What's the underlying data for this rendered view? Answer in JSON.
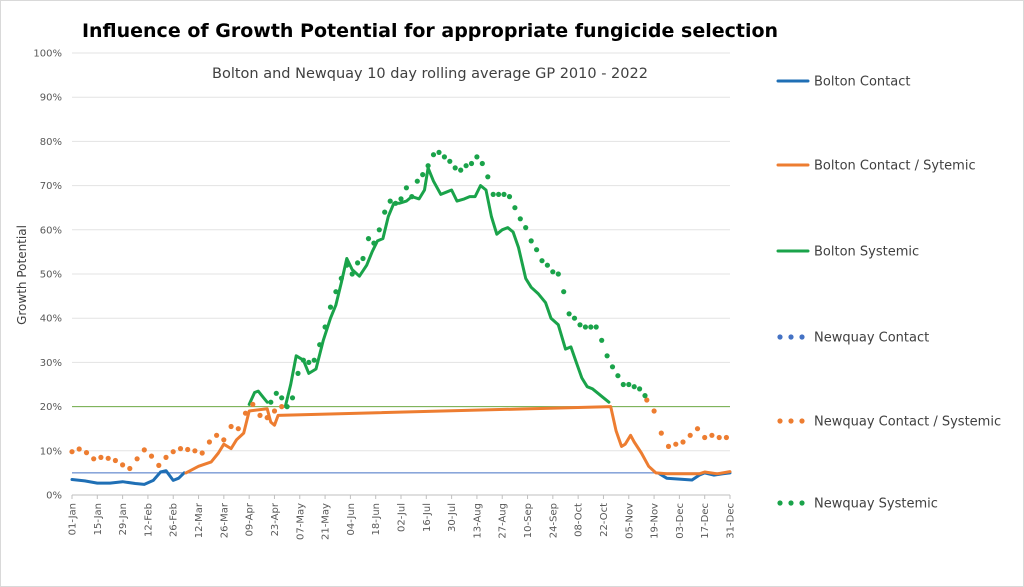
{
  "chart_data": {
    "type": "line",
    "title": "Influence of Growth Potential for appropriate fungicide selection",
    "subtitle": "Bolton and Newquay 10 day rolling average GP 2010 - 2022",
    "ylabel": "Growth Potential",
    "xlabel": "",
    "ylim": [
      0,
      100
    ],
    "y_ticks": [
      "0%",
      "10%",
      "20%",
      "30%",
      "40%",
      "50%",
      "60%",
      "70%",
      "80%",
      "90%",
      "100%"
    ],
    "x_ticks": [
      "01-Jan",
      "15-Jan",
      "29-Jan",
      "12-Feb",
      "26-Feb",
      "12-Mar",
      "26-Mar",
      "09-Apr",
      "23-Apr",
      "07-May",
      "21-May",
      "04-Jun",
      "18-Jun",
      "02-Jul",
      "16-Jul",
      "30-Jul",
      "13-Aug",
      "27-Aug",
      "10-Sep",
      "24-Sep",
      "08-Oct",
      "22-Oct",
      "05-Nov",
      "19-Nov",
      "03-Dec",
      "17-Dec",
      "31-Dec"
    ],
    "thresholds": [
      {
        "value": 5,
        "color": "#4472c4"
      },
      {
        "value": 20,
        "color": "#70ad47"
      }
    ],
    "grid": true,
    "legend_position": "right",
    "colors": {
      "contact": "#1f6fb5",
      "contact_systemic": "#ed7d31",
      "systemic": "#1aa34a"
    },
    "series": [
      {
        "name": "Bolton Contact",
        "style": "solid",
        "color": "#1f6fb5",
        "x": [
          "01-Jan",
          "08-Jan",
          "15-Jan",
          "22-Jan",
          "29-Jan",
          "05-Feb",
          "10-Feb",
          "15-Feb",
          "19-Feb",
          "22-Feb",
          "26-Feb",
          "01-Mar",
          "04-Mar",
          "06-Nov",
          "08-Nov",
          "15-Nov",
          "22-Nov",
          "26-Nov",
          "03-Dec",
          "10-Dec",
          "14-Dec",
          "17-Dec",
          "22-Dec",
          "27-Dec",
          "31-Dec"
        ],
        "y": [
          3.5,
          3.2,
          2.7,
          2.7,
          3.0,
          2.6,
          2.4,
          3.3,
          5.2,
          5.5,
          3.3,
          3.8,
          5.0,
          null,
          null,
          null,
          4.8,
          3.8,
          3.6,
          3.4,
          4.5,
          5.0,
          4.5,
          4.8,
          5.0
        ]
      },
      {
        "name": "Bolton Contact / Sytemic",
        "style": "solid",
        "color": "#ed7d31",
        "x": [
          "05-Mar",
          "12-Mar",
          "19-Mar",
          "23-Mar",
          "26-Mar",
          "30-Mar",
          "02-Apr",
          "06-Apr",
          "09-Apr",
          "19-Apr",
          "21-Apr",
          "23-Apr",
          "25-Apr",
          "26-Oct",
          "29-Oct",
          "01-Nov",
          "03-Nov",
          "06-Nov",
          "08-Nov",
          "12-Nov",
          "16-Nov",
          "20-Nov",
          "26-Nov",
          "14-Dec",
          "17-Dec",
          "24-Dec",
          "31-Dec"
        ],
        "y": [
          5.0,
          6.5,
          7.5,
          9.5,
          11.5,
          10.5,
          12.5,
          14.0,
          19.0,
          19.5,
          16.5,
          15.8,
          18.0,
          20.0,
          14.5,
          11.0,
          11.5,
          13.5,
          12.0,
          9.5,
          6.5,
          5.0,
          4.8,
          4.8,
          5.2,
          4.8,
          5.3
        ]
      },
      {
        "name": "Bolton Systemic",
        "style": "solid",
        "color": "#1aa34a",
        "x": [
          "09-Apr",
          "12-Apr",
          "14-Apr",
          "17-Apr",
          "19-Apr",
          "23-Apr",
          "29-Apr",
          "02-May",
          "05-May",
          "09-May",
          "12-May",
          "16-May",
          "20-May",
          "24-May",
          "27-May",
          "30-May",
          "02-Jun",
          "05-Jun",
          "09-Jun",
          "13-Jun",
          "16-Jun",
          "19-Jun",
          "22-Jun",
          "25-Jun",
          "28-Jun",
          "01-Jul",
          "05-Jul",
          "08-Jul",
          "12-Jul",
          "15-Jul",
          "17-Jul",
          "20-Jul",
          "24-Jul",
          "27-Jul",
          "30-Jul",
          "02-Aug",
          "06-Aug",
          "09-Aug",
          "12-Aug",
          "15-Aug",
          "18-Aug",
          "21-Aug",
          "24-Aug",
          "27-Aug",
          "30-Aug",
          "02-Sep",
          "05-Sep",
          "09-Sep",
          "12-Sep",
          "16-Sep",
          "20-Sep",
          "23-Sep",
          "27-Sep",
          "01-Oct",
          "04-Oct",
          "07-Oct",
          "10-Oct",
          "13-Oct",
          "16-Oct",
          "19-Oct",
          "22-Oct",
          "25-Oct"
        ],
        "y": [
          20.5,
          23.2,
          23.5,
          22.0,
          21.0,
          null,
          20.0,
          25.0,
          31.5,
          30.5,
          27.5,
          28.5,
          35.0,
          40.0,
          43.0,
          48.0,
          53.5,
          51.0,
          49.5,
          52.0,
          55.0,
          57.5,
          58.0,
          63.0,
          66.0,
          66.0,
          66.5,
          67.5,
          67.0,
          69.0,
          74.0,
          71.0,
          68.0,
          68.5,
          69.0,
          66.5,
          67.0,
          67.5,
          67.5,
          70.0,
          69.0,
          63.0,
          59.0,
          60.0,
          60.5,
          59.5,
          56.0,
          49.0,
          47.0,
          45.5,
          43.5,
          40.0,
          38.5,
          33.0,
          33.5,
          30.0,
          26.5,
          24.5,
          24.0,
          23.0,
          22.0,
          21.0
        ]
      },
      {
        "name": "Newquay Contact",
        "style": "dotted",
        "color": "#4472c4",
        "x": [],
        "y": []
      },
      {
        "name": "Newquay Contact / Systemic",
        "style": "dotted",
        "color": "#ed7d31",
        "x": [
          "01-Jan",
          "05-Jan",
          "09-Jan",
          "13-Jan",
          "17-Jan",
          "21-Jan",
          "25-Jan",
          "29-Jan",
          "02-Feb",
          "06-Feb",
          "10-Feb",
          "14-Feb",
          "18-Feb",
          "22-Feb",
          "26-Feb",
          "02-Mar",
          "06-Mar",
          "10-Mar",
          "14-Mar",
          "18-Mar",
          "22-Mar",
          "26-Mar",
          "30-Mar",
          "03-Apr",
          "07-Apr",
          "11-Apr",
          "15-Apr",
          "19-Apr",
          "23-Apr",
          "27-Apr",
          "15-Nov",
          "19-Nov",
          "23-Nov",
          "27-Nov",
          "01-Dec",
          "05-Dec",
          "09-Dec",
          "13-Dec",
          "17-Dec",
          "21-Dec",
          "25-Dec",
          "29-Dec"
        ],
        "y": [
          9.8,
          10.4,
          9.6,
          8.2,
          8.5,
          8.3,
          7.8,
          6.8,
          6.0,
          8.2,
          10.2,
          8.8,
          6.7,
          8.5,
          9.8,
          10.5,
          10.3,
          10.0,
          9.5,
          12.0,
          13.5,
          12.5,
          15.5,
          15.0,
          18.5,
          20.5,
          18.0,
          17.5,
          19.0,
          20.0,
          21.5,
          19.0,
          14.0,
          11.0,
          11.5,
          12.0,
          13.5,
          15.0,
          13.0,
          13.5,
          13.0,
          13.0
        ]
      },
      {
        "name": "Newquay Systemic",
        "style": "dotted",
        "color": "#1aa34a",
        "x": [
          "21-Apr",
          "24-Apr",
          "27-Apr",
          "30-Apr",
          "03-May",
          "06-May",
          "09-May",
          "12-May",
          "15-May",
          "18-May",
          "21-May",
          "24-May",
          "27-May",
          "30-May",
          "02-Jun",
          "05-Jun",
          "08-Jun",
          "11-Jun",
          "14-Jun",
          "17-Jun",
          "20-Jun",
          "23-Jun",
          "26-Jun",
          "29-Jun",
          "02-Jul",
          "05-Jul",
          "08-Jul",
          "11-Jul",
          "14-Jul",
          "17-Jul",
          "20-Jul",
          "23-Jul",
          "26-Jul",
          "29-Jul",
          "01-Aug",
          "04-Aug",
          "07-Aug",
          "10-Aug",
          "13-Aug",
          "16-Aug",
          "19-Aug",
          "22-Aug",
          "25-Aug",
          "28-Aug",
          "31-Aug",
          "03-Sep",
          "06-Sep",
          "09-Sep",
          "12-Sep",
          "15-Sep",
          "18-Sep",
          "21-Sep",
          "24-Sep",
          "27-Sep",
          "30-Sep",
          "03-Oct",
          "06-Oct",
          "09-Oct",
          "12-Oct",
          "15-Oct",
          "18-Oct",
          "21-Oct",
          "24-Oct",
          "27-Oct",
          "30-Oct",
          "02-Nov",
          "05-Nov",
          "08-Nov",
          "11-Nov",
          "14-Nov"
        ],
        "y": [
          21.0,
          23.0,
          22.0,
          20.0,
          22.0,
          27.5,
          30.5,
          30.0,
          30.5,
          34.0,
          38.0,
          42.5,
          46.0,
          49.0,
          52.0,
          50.0,
          52.5,
          53.5,
          58.0,
          57.0,
          60.0,
          64.0,
          66.5,
          66.0,
          67.0,
          69.5,
          67.5,
          71.0,
          72.5,
          74.5,
          77.0,
          77.5,
          76.5,
          75.5,
          74.0,
          73.5,
          74.5,
          75.0,
          76.5,
          75.0,
          72.0,
          68.0,
          68.0,
          68.0,
          67.5,
          65.0,
          62.5,
          60.5,
          57.5,
          55.5,
          53.0,
          52.0,
          50.5,
          50.0,
          46.0,
          41.0,
          40.0,
          38.5,
          38.0,
          38.0,
          38.0,
          35.0,
          31.5,
          29.0,
          27.0,
          25.0,
          25.0,
          24.5,
          24.0,
          22.5
        ]
      }
    ]
  }
}
